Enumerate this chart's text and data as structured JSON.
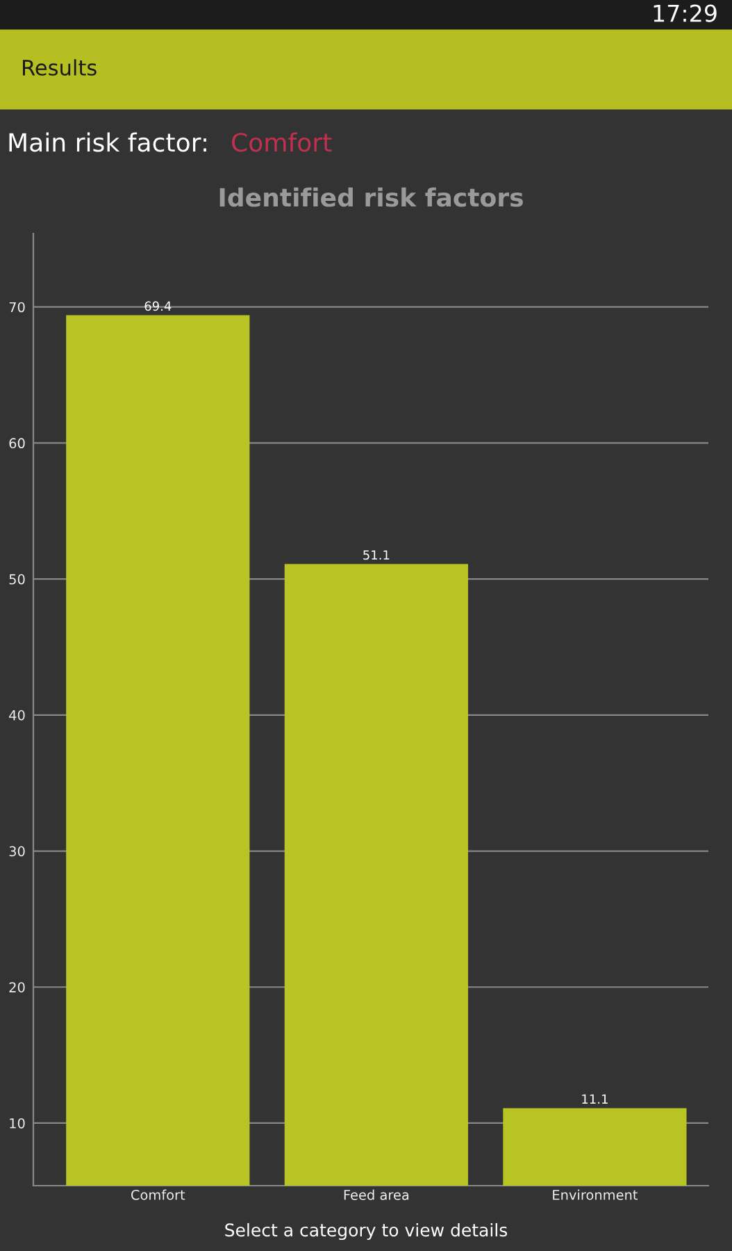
{
  "chart_data": {
    "type": "bar",
    "title": "Identified risk factors",
    "annotations": [
      "17:29",
      "Results",
      "Main risk factor:",
      "Comfort",
      "Select a category to view details"
    ],
    "categories": [
      "Comfort",
      "Feed area",
      "Environment"
    ],
    "values": [
      69.4,
      51.1,
      11.1
    ],
    "color": "#b8c424",
    "ylim": [
      5.4,
      75.4
    ],
    "yticks": [
      10,
      20,
      30,
      40,
      50,
      60,
      70
    ],
    "grid": "y",
    "data_labels": true
  }
}
